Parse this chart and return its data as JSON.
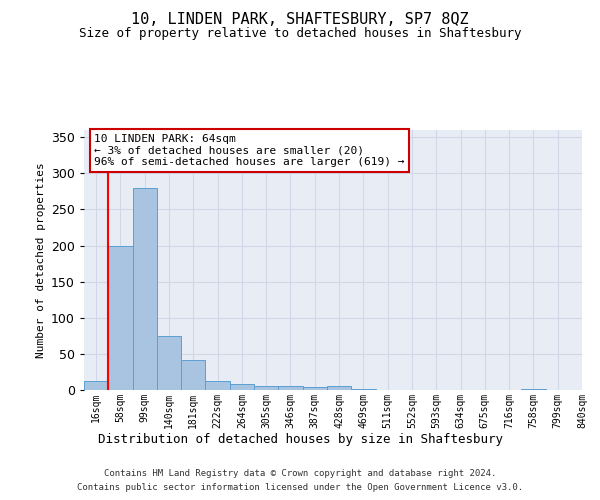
{
  "title1": "10, LINDEN PARK, SHAFTESBURY, SP7 8QZ",
  "title2": "Size of property relative to detached houses in Shaftesbury",
  "xlabel": "Distribution of detached houses by size in Shaftesbury",
  "ylabel": "Number of detached properties",
  "footer1": "Contains HM Land Registry data © Crown copyright and database right 2024.",
  "footer2": "Contains public sector information licensed under the Open Government Licence v3.0.",
  "bin_labels": [
    "16sqm",
    "58sqm",
    "99sqm",
    "140sqm",
    "181sqm",
    "222sqm",
    "264sqm",
    "305sqm",
    "346sqm",
    "387sqm",
    "428sqm",
    "469sqm",
    "511sqm",
    "552sqm",
    "593sqm",
    "634sqm",
    "675sqm",
    "716sqm",
    "758sqm",
    "799sqm",
    "840sqm"
  ],
  "bar_values": [
    13,
    200,
    280,
    75,
    41,
    13,
    8,
    6,
    6,
    4,
    5,
    1,
    0,
    0,
    0,
    0,
    0,
    0,
    2,
    0
  ],
  "bar_color": "#a8c4e0",
  "bar_edge_color": "#5a9fd4",
  "red_line_x": 0.5,
  "annotation_text": "10 LINDEN PARK: 64sqm\n← 3% of detached houses are smaller (20)\n96% of semi-detached houses are larger (619) →",
  "annotation_box_color": "#ffffff",
  "annotation_box_edge": "#cc0000",
  "ylim": [
    0,
    360
  ],
  "yticks": [
    0,
    50,
    100,
    150,
    200,
    250,
    300,
    350
  ],
  "grid_color": "#d0d8e8",
  "bg_color": "#e8edf5",
  "fig_bg": "#ffffff",
  "title1_fontsize": 11,
  "title2_fontsize": 9,
  "ylabel_fontsize": 8,
  "xlabel_fontsize": 9,
  "tick_fontsize": 7,
  "footer_fontsize": 6.5,
  "annotation_fontsize": 8
}
